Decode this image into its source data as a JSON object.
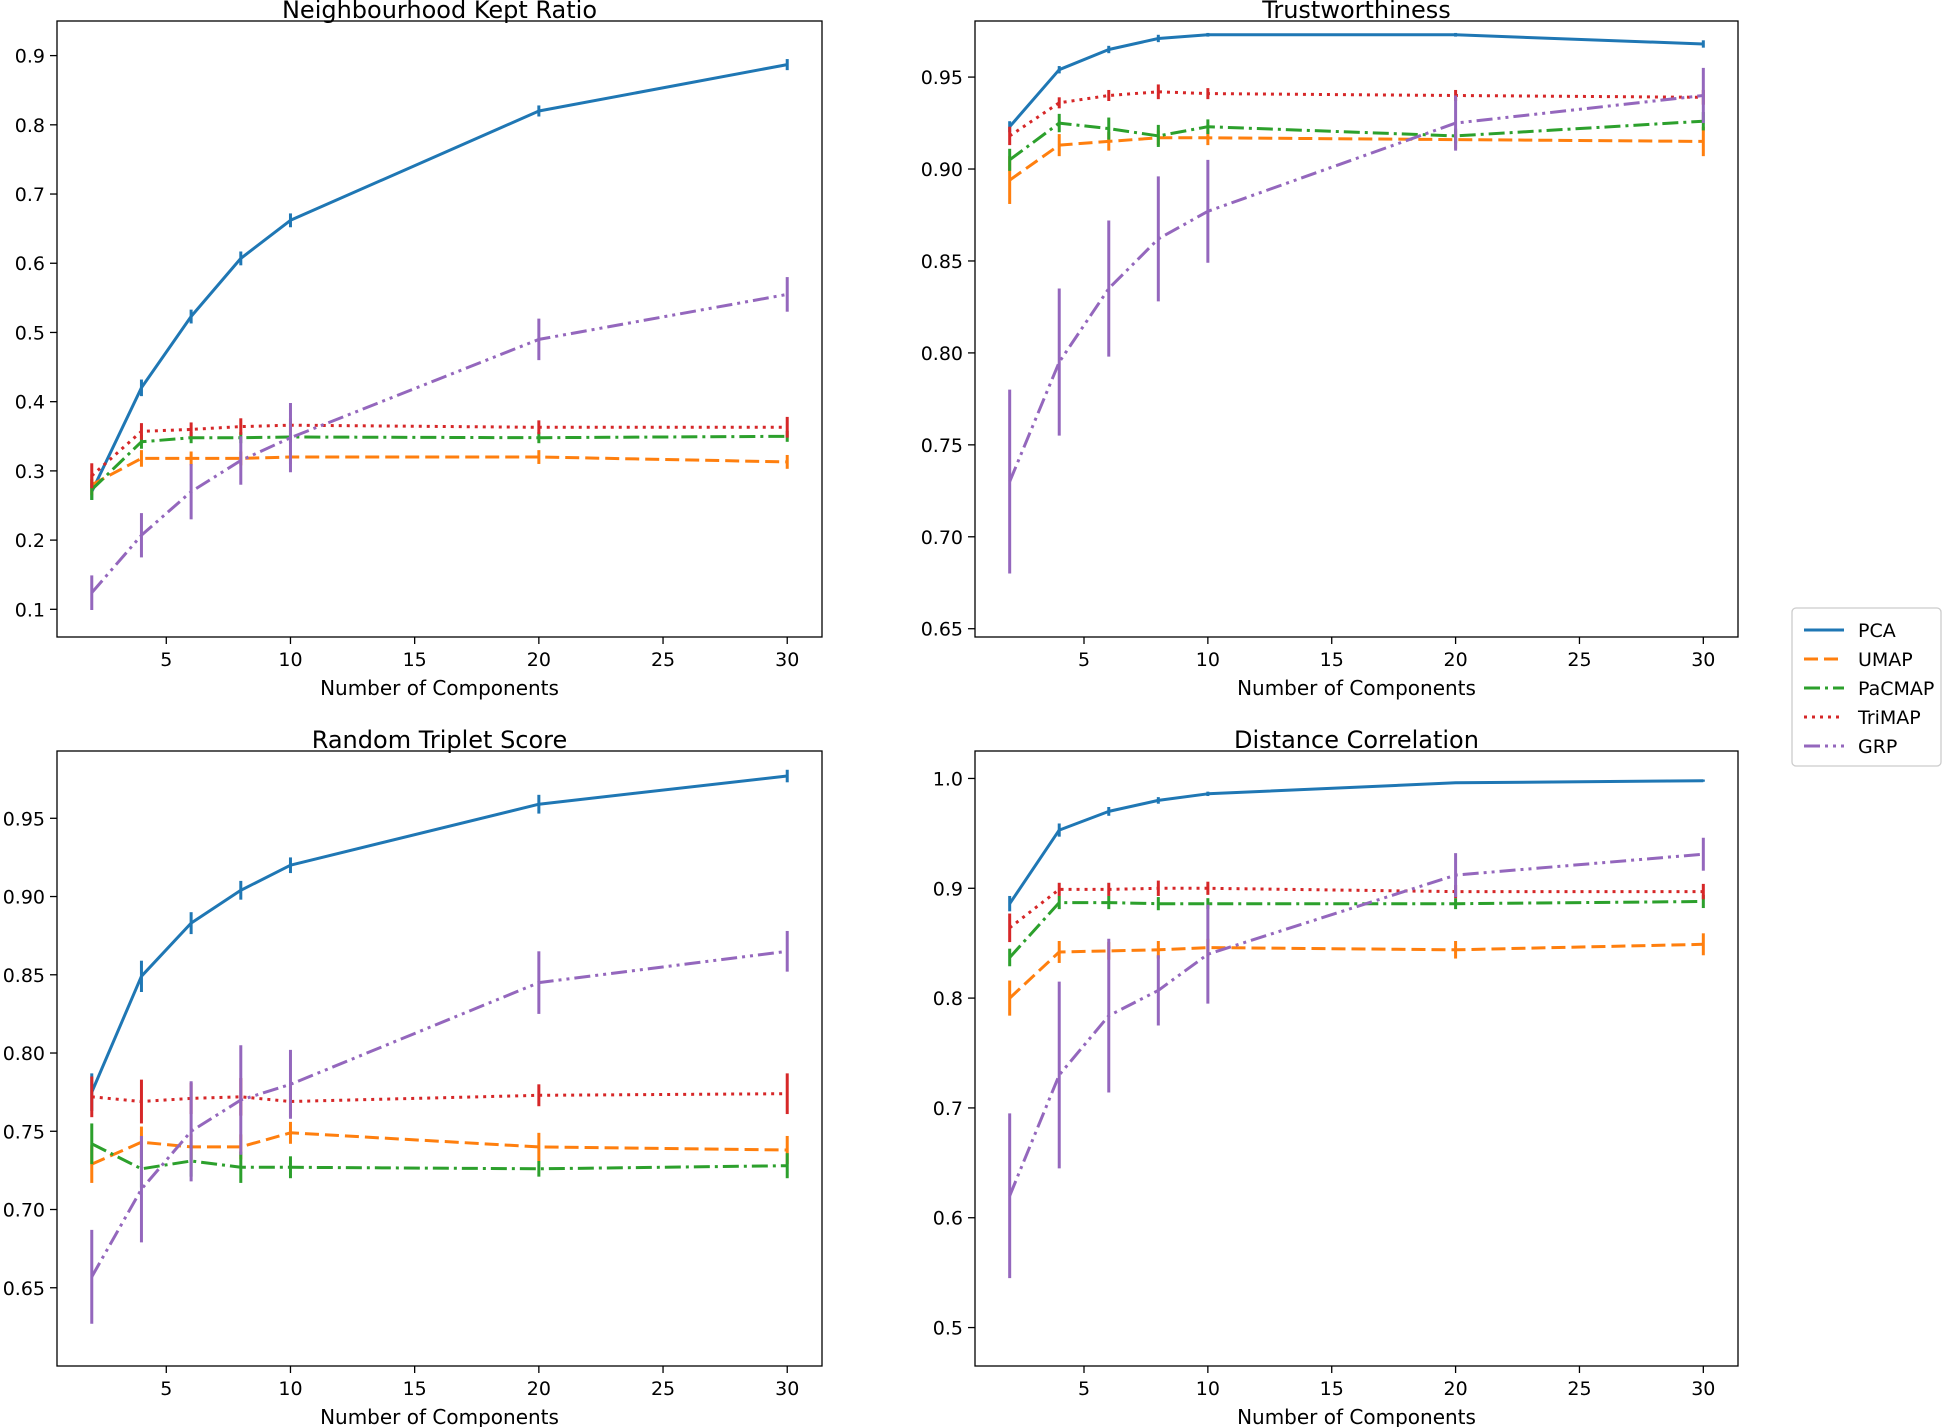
{
  "legend": {
    "entries": [
      {
        "name": "PCA",
        "color": "#1f77b4",
        "dash": "solid"
      },
      {
        "name": "UMAP",
        "color": "#ff7f0e",
        "dash": "dashed"
      },
      {
        "name": "PaCMAP",
        "color": "#2ca02c",
        "dash": "dashdot"
      },
      {
        "name": "TriMAP",
        "color": "#d62728",
        "dash": "dotted"
      },
      {
        "name": "GRP",
        "color": "#9467bd",
        "dash": "dashdotdot"
      }
    ]
  },
  "chart_data": [
    {
      "type": "line",
      "title": "Neighbourhood Kept Ratio",
      "xlabel": "Number of Components",
      "ylabel": "",
      "xlim": [
        0.6,
        31.4
      ],
      "ylim": [
        0.06,
        0.95
      ],
      "xticks": [
        5,
        10,
        15,
        20,
        25,
        30
      ],
      "yticks": [
        0.1,
        0.2,
        0.3,
        0.4,
        0.5,
        0.6,
        0.7,
        0.8,
        0.9
      ],
      "x": [
        2,
        4,
        6,
        8,
        10,
        20,
        30
      ],
      "series": [
        {
          "name": "PCA",
          "values": [
            0.27,
            0.42,
            0.523,
            0.607,
            0.662,
            0.82,
            0.887
          ],
          "err": [
            0.012,
            0.012,
            0.01,
            0.01,
            0.01,
            0.008,
            0.008
          ]
        },
        {
          "name": "UMAP",
          "values": [
            0.28,
            0.318,
            0.318,
            0.318,
            0.32,
            0.32,
            0.313
          ],
          "err": [
            0.015,
            0.012,
            0.01,
            0.01,
            0.01,
            0.01,
            0.01
          ]
        },
        {
          "name": "PaCMAP",
          "values": [
            0.273,
            0.342,
            0.348,
            0.348,
            0.349,
            0.348,
            0.35
          ],
          "err": [
            0.015,
            0.01,
            0.008,
            0.008,
            0.008,
            0.008,
            0.008
          ]
        },
        {
          "name": "TriMAP",
          "values": [
            0.293,
            0.357,
            0.36,
            0.364,
            0.366,
            0.363,
            0.363
          ],
          "err": [
            0.018,
            0.012,
            0.01,
            0.012,
            0.01,
            0.01,
            0.015
          ]
        },
        {
          "name": "GRP",
          "values": [
            0.124,
            0.207,
            0.27,
            0.315,
            0.348,
            0.49,
            0.555
          ],
          "err": [
            0.025,
            0.032,
            0.04,
            0.035,
            0.05,
            0.03,
            0.025
          ]
        }
      ]
    },
    {
      "type": "line",
      "title": "Trustworthiness",
      "xlabel": "Number of Components",
      "ylabel": "",
      "xlim": [
        0.6,
        31.4
      ],
      "ylim": [
        0.6455,
        0.9805
      ],
      "xticks": [
        5,
        10,
        15,
        20,
        25,
        30
      ],
      "yticks": [
        0.65,
        0.7,
        0.75,
        0.8,
        0.85,
        0.9,
        0.95
      ],
      "x": [
        2,
        4,
        6,
        8,
        10,
        20,
        30
      ],
      "series": [
        {
          "name": "PCA",
          "values": [
            0.923,
            0.954,
            0.965,
            0.971,
            0.973,
            0.973,
            0.968
          ],
          "err": [
            0.003,
            0.002,
            0.002,
            0.002,
            0.001,
            0.001,
            0.002
          ]
        },
        {
          "name": "UMAP",
          "values": [
            0.894,
            0.913,
            0.915,
            0.917,
            0.917,
            0.916,
            0.915
          ],
          "err": [
            0.013,
            0.006,
            0.005,
            0.004,
            0.004,
            0.005,
            0.008
          ]
        },
        {
          "name": "PaCMAP",
          "values": [
            0.905,
            0.925,
            0.922,
            0.918,
            0.923,
            0.918,
            0.926
          ],
          "err": [
            0.006,
            0.005,
            0.006,
            0.006,
            0.004,
            0.004,
            0.005
          ]
        },
        {
          "name": "TriMAP",
          "values": [
            0.918,
            0.936,
            0.94,
            0.942,
            0.941,
            0.94,
            0.939
          ],
          "err": [
            0.005,
            0.003,
            0.003,
            0.004,
            0.003,
            0.003,
            0.004
          ]
        },
        {
          "name": "GRP",
          "values": [
            0.73,
            0.795,
            0.835,
            0.862,
            0.877,
            0.925,
            0.94
          ],
          "err": [
            0.05,
            0.04,
            0.037,
            0.034,
            0.028,
            0.015,
            0.015
          ]
        }
      ]
    },
    {
      "type": "line",
      "title": "Random Triplet Score",
      "xlabel": "Number of Components",
      "ylabel": "",
      "xlim": [
        0.6,
        31.4
      ],
      "ylim": [
        0.6,
        0.993
      ],
      "xticks": [
        5,
        10,
        15,
        20,
        25,
        30
      ],
      "yticks": [
        0.65,
        0.7,
        0.75,
        0.8,
        0.85,
        0.9,
        0.95
      ],
      "x": [
        2,
        4,
        6,
        8,
        10,
        20,
        30
      ],
      "series": [
        {
          "name": "PCA",
          "values": [
            0.775,
            0.849,
            0.883,
            0.904,
            0.92,
            0.959,
            0.977
          ],
          "err": [
            0.012,
            0.01,
            0.007,
            0.006,
            0.005,
            0.006,
            0.004
          ]
        },
        {
          "name": "UMAP",
          "values": [
            0.729,
            0.743,
            0.74,
            0.74,
            0.749,
            0.74,
            0.738
          ],
          "err": [
            0.012,
            0.01,
            0.008,
            0.008,
            0.007,
            0.009,
            0.009
          ]
        },
        {
          "name": "PaCMAP",
          "values": [
            0.742,
            0.726,
            0.731,
            0.727,
            0.727,
            0.726,
            0.728
          ],
          "err": [
            0.013,
            0.012,
            0.01,
            0.01,
            0.007,
            0.005,
            0.008
          ]
        },
        {
          "name": "TriMAP",
          "values": [
            0.772,
            0.769,
            0.771,
            0.772,
            0.769,
            0.773,
            0.774
          ],
          "err": [
            0.013,
            0.014,
            0.01,
            0.012,
            0.01,
            0.007,
            0.013
          ]
        },
        {
          "name": "GRP",
          "values": [
            0.657,
            0.713,
            0.75,
            0.77,
            0.78,
            0.845,
            0.865
          ],
          "err": [
            0.03,
            0.034,
            0.032,
            0.035,
            0.022,
            0.02,
            0.013
          ]
        }
      ]
    },
    {
      "type": "line",
      "title": "Distance Correlation",
      "xlabel": "Number of Components",
      "ylabel": "",
      "xlim": [
        0.6,
        31.4
      ],
      "ylim": [
        0.465,
        1.025
      ],
      "xticks": [
        5,
        10,
        15,
        20,
        25,
        30
      ],
      "yticks": [
        0.5,
        0.6,
        0.7,
        0.8,
        0.9,
        1.0
      ],
      "x": [
        2,
        4,
        6,
        8,
        10,
        20,
        30
      ],
      "series": [
        {
          "name": "PCA",
          "values": [
            0.886,
            0.953,
            0.97,
            0.98,
            0.986,
            0.996,
            0.998
          ],
          "err": [
            0.007,
            0.006,
            0.004,
            0.003,
            0.002,
            0.001,
            0.001
          ]
        },
        {
          "name": "UMAP",
          "values": [
            0.8,
            0.842,
            0.843,
            0.844,
            0.846,
            0.844,
            0.849
          ],
          "err": [
            0.016,
            0.01,
            0.008,
            0.008,
            0.008,
            0.008,
            0.01
          ]
        },
        {
          "name": "PaCMAP",
          "values": [
            0.837,
            0.887,
            0.887,
            0.886,
            0.886,
            0.886,
            0.888
          ],
          "err": [
            0.008,
            0.006,
            0.006,
            0.006,
            0.005,
            0.005,
            0.006
          ]
        },
        {
          "name": "TriMAP",
          "values": [
            0.864,
            0.899,
            0.899,
            0.9,
            0.9,
            0.897,
            0.897
          ],
          "err": [
            0.013,
            0.006,
            0.006,
            0.007,
            0.006,
            0.006,
            0.007
          ]
        },
        {
          "name": "GRP",
          "values": [
            0.62,
            0.73,
            0.784,
            0.807,
            0.84,
            0.912,
            0.931
          ],
          "err": [
            0.075,
            0.085,
            0.07,
            0.032,
            0.045,
            0.02,
            0.015
          ]
        }
      ]
    }
  ]
}
